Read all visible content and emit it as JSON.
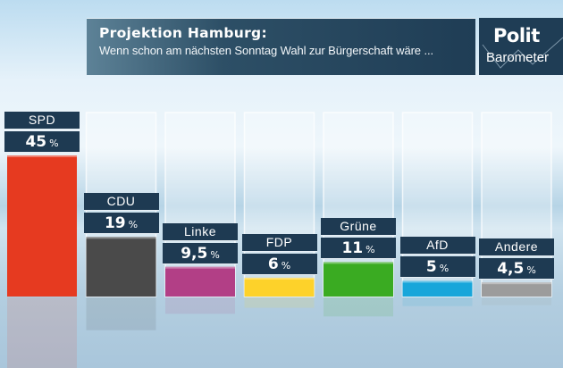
{
  "header": {
    "title": "Projektion Hamburg:",
    "subtitle": "Wenn schon am nächsten Sonntag Wahl zur Bürgerschaft wäre ..."
  },
  "logo": {
    "line1": "Polit",
    "line2": "Barometer"
  },
  "chart_data": {
    "type": "bar",
    "title": "Projektion Hamburg:",
    "subtitle": "Wenn schon am nächsten Sonntag Wahl zur Bürgerschaft wäre ...",
    "xlabel": "",
    "ylabel": "",
    "unit": "%",
    "ylim": [
      0,
      45
    ],
    "grid": false,
    "legend": "none",
    "categories": [
      "SPD",
      "CDU",
      "Linke",
      "FDP",
      "Grüne",
      "AfD",
      "Andere"
    ],
    "values": [
      45,
      19,
      9.5,
      6,
      11,
      5,
      4.5
    ],
    "value_labels": [
      "45",
      "19",
      "9,5",
      "6",
      "11",
      "5",
      "4,5"
    ],
    "colors": [
      "#e63a20",
      "#4a4a4a",
      "#b23f86",
      "#fdd22a",
      "#3aab22",
      "#18a6da",
      "#9c9c9c"
    ]
  }
}
